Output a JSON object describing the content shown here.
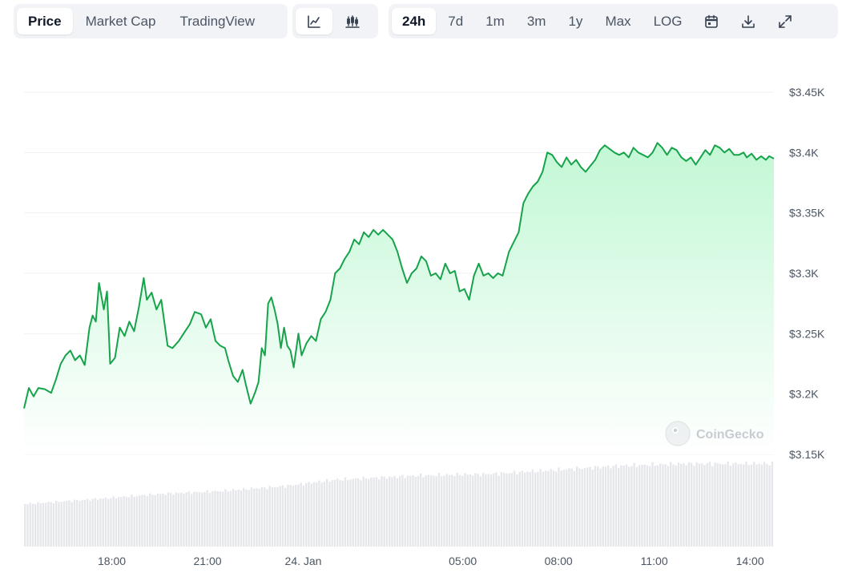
{
  "toolbar": {
    "view_tabs": [
      {
        "label": "Price",
        "active": true
      },
      {
        "label": "Market Cap",
        "active": false
      },
      {
        "label": "TradingView",
        "active": false
      }
    ],
    "chart_style_icons": [
      "line-chart-icon",
      "candlestick-icon"
    ],
    "ranges": [
      {
        "label": "24h",
        "active": true
      },
      {
        "label": "7d",
        "active": false
      },
      {
        "label": "1m",
        "active": false
      },
      {
        "label": "3m",
        "active": false
      },
      {
        "label": "1y",
        "active": false
      },
      {
        "label": "Max",
        "active": false
      },
      {
        "label": "LOG",
        "active": false
      }
    ],
    "tool_icons": [
      "calendar-icon",
      "download-icon",
      "expand-icon"
    ]
  },
  "watermark": "CoinGecko",
  "colors": {
    "line": "#16a34a",
    "area_top": "#bbf7d0",
    "grid": "#eef0f3",
    "volume": "#e5e7eb",
    "axis_text": "#4b5563"
  },
  "chart_data": {
    "type": "area",
    "title": "",
    "xlabel": "",
    "ylabel": "",
    "grid": true,
    "legend": "none",
    "x_range_hours": [
      15.25,
      38.75
    ],
    "x_ticks": [
      {
        "label": "18:00",
        "h": 18
      },
      {
        "label": "21:00",
        "h": 21
      },
      {
        "label": "24. Jan",
        "h": 24
      },
      {
        "label": "05:00",
        "h": 29
      },
      {
        "label": "08:00",
        "h": 32
      },
      {
        "label": "11:00",
        "h": 35
      },
      {
        "label": "14:00",
        "h": 38
      }
    ],
    "y_ticks": [
      {
        "label": "$3.45K",
        "v": 3450
      },
      {
        "label": "$3.4K",
        "v": 3400
      },
      {
        "label": "$3.35K",
        "v": 3350
      },
      {
        "label": "$3.3K",
        "v": 3300
      },
      {
        "label": "$3.25K",
        "v": 3250
      },
      {
        "label": "$3.2K",
        "v": 3200
      },
      {
        "label": "$3.15K",
        "v": 3150
      }
    ],
    "ylim": [
      3150,
      3450
    ],
    "series": [
      {
        "points": [
          [
            15.25,
            3188
          ],
          [
            15.4,
            3205
          ],
          [
            15.55,
            3198
          ],
          [
            15.7,
            3205
          ],
          [
            15.9,
            3204
          ],
          [
            16.1,
            3201
          ],
          [
            16.25,
            3212
          ],
          [
            16.4,
            3225
          ],
          [
            16.55,
            3232
          ],
          [
            16.7,
            3236
          ],
          [
            16.85,
            3228
          ],
          [
            17.0,
            3232
          ],
          [
            17.15,
            3224
          ],
          [
            17.3,
            3255
          ],
          [
            17.4,
            3265
          ],
          [
            17.5,
            3260
          ],
          [
            17.6,
            3292
          ],
          [
            17.75,
            3270
          ],
          [
            17.85,
            3285
          ],
          [
            17.95,
            3225
          ],
          [
            18.1,
            3230
          ],
          [
            18.25,
            3255
          ],
          [
            18.4,
            3248
          ],
          [
            18.55,
            3260
          ],
          [
            18.7,
            3252
          ],
          [
            18.85,
            3272
          ],
          [
            19.0,
            3296
          ],
          [
            19.1,
            3278
          ],
          [
            19.25,
            3284
          ],
          [
            19.4,
            3270
          ],
          [
            19.55,
            3278
          ],
          [
            19.75,
            3240
          ],
          [
            19.9,
            3238
          ],
          [
            20.1,
            3244
          ],
          [
            20.3,
            3252
          ],
          [
            20.45,
            3258
          ],
          [
            20.6,
            3268
          ],
          [
            20.8,
            3266
          ],
          [
            20.95,
            3255
          ],
          [
            21.1,
            3262
          ],
          [
            21.25,
            3244
          ],
          [
            21.4,
            3240
          ],
          [
            21.55,
            3238
          ],
          [
            21.65,
            3228
          ],
          [
            21.8,
            3215
          ],
          [
            21.95,
            3210
          ],
          [
            22.1,
            3220
          ],
          [
            22.2,
            3208
          ],
          [
            22.35,
            3192
          ],
          [
            22.5,
            3202
          ],
          [
            22.6,
            3210
          ],
          [
            22.7,
            3238
          ],
          [
            22.8,
            3232
          ],
          [
            22.9,
            3275
          ],
          [
            23.0,
            3280
          ],
          [
            23.1,
            3270
          ],
          [
            23.2,
            3258
          ],
          [
            23.3,
            3238
          ],
          [
            23.4,
            3255
          ],
          [
            23.5,
            3240
          ],
          [
            23.6,
            3236
          ],
          [
            23.7,
            3222
          ],
          [
            23.85,
            3250
          ],
          [
            23.95,
            3232
          ],
          [
            24.1,
            3242
          ],
          [
            24.25,
            3248
          ],
          [
            24.4,
            3244
          ],
          [
            24.55,
            3262
          ],
          [
            24.7,
            3268
          ],
          [
            24.85,
            3278
          ],
          [
            25.0,
            3300
          ],
          [
            25.15,
            3304
          ],
          [
            25.3,
            3312
          ],
          [
            25.45,
            3318
          ],
          [
            25.6,
            3328
          ],
          [
            25.75,
            3324
          ],
          [
            25.9,
            3334
          ],
          [
            26.05,
            3330
          ],
          [
            26.2,
            3336
          ],
          [
            26.35,
            3332
          ],
          [
            26.5,
            3336
          ],
          [
            26.65,
            3332
          ],
          [
            26.8,
            3328
          ],
          [
            26.95,
            3318
          ],
          [
            27.1,
            3304
          ],
          [
            27.25,
            3292
          ],
          [
            27.4,
            3300
          ],
          [
            27.55,
            3304
          ],
          [
            27.7,
            3314
          ],
          [
            27.85,
            3310
          ],
          [
            28.0,
            3298
          ],
          [
            28.15,
            3300
          ],
          [
            28.3,
            3295
          ],
          [
            28.45,
            3308
          ],
          [
            28.6,
            3300
          ],
          [
            28.75,
            3302
          ],
          [
            28.9,
            3285
          ],
          [
            29.05,
            3287
          ],
          [
            29.2,
            3278
          ],
          [
            29.35,
            3298
          ],
          [
            29.5,
            3308
          ],
          [
            29.65,
            3298
          ],
          [
            29.8,
            3300
          ],
          [
            29.95,
            3296
          ],
          [
            30.1,
            3300
          ],
          [
            30.25,
            3298
          ],
          [
            30.45,
            3318
          ],
          [
            30.6,
            3326
          ],
          [
            30.75,
            3334
          ],
          [
            30.9,
            3358
          ],
          [
            31.05,
            3366
          ],
          [
            31.2,
            3372
          ],
          [
            31.35,
            3376
          ],
          [
            31.5,
            3384
          ],
          [
            31.65,
            3400
          ],
          [
            31.8,
            3398
          ],
          [
            31.95,
            3392
          ],
          [
            32.1,
            3388
          ],
          [
            32.25,
            3396
          ],
          [
            32.4,
            3390
          ],
          [
            32.55,
            3394
          ],
          [
            32.7,
            3388
          ],
          [
            32.85,
            3384
          ],
          [
            33.0,
            3389
          ],
          [
            33.15,
            3394
          ],
          [
            33.3,
            3402
          ],
          [
            33.45,
            3406
          ],
          [
            33.6,
            3403
          ],
          [
            33.75,
            3400
          ],
          [
            33.9,
            3398
          ],
          [
            34.05,
            3400
          ],
          [
            34.2,
            3396
          ],
          [
            34.35,
            3404
          ],
          [
            34.5,
            3400
          ],
          [
            34.65,
            3398
          ],
          [
            34.8,
            3396
          ],
          [
            34.95,
            3400
          ],
          [
            35.1,
            3408
          ],
          [
            35.25,
            3404
          ],
          [
            35.4,
            3398
          ],
          [
            35.55,
            3404
          ],
          [
            35.7,
            3402
          ],
          [
            35.85,
            3396
          ],
          [
            36.0,
            3393
          ],
          [
            36.15,
            3396
          ],
          [
            36.3,
            3390
          ],
          [
            36.45,
            3396
          ],
          [
            36.6,
            3402
          ],
          [
            36.75,
            3398
          ],
          [
            36.9,
            3406
          ],
          [
            37.05,
            3404
          ],
          [
            37.2,
            3400
          ],
          [
            37.35,
            3403
          ],
          [
            37.5,
            3398
          ],
          [
            37.65,
            3398
          ],
          [
            37.8,
            3400
          ],
          [
            37.9,
            3396
          ],
          [
            38.05,
            3399
          ],
          [
            38.2,
            3394
          ],
          [
            38.35,
            3397
          ],
          [
            38.5,
            3394
          ],
          [
            38.6,
            3397
          ],
          [
            38.75,
            3395
          ]
        ]
      }
    ],
    "volume": {
      "scale": "relative",
      "levels": [
        [
          15.25,
          0.42
        ],
        [
          17.5,
          0.47
        ],
        [
          19.5,
          0.52
        ],
        [
          21.5,
          0.55
        ],
        [
          23.5,
          0.6
        ],
        [
          25.0,
          0.66
        ],
        [
          27.5,
          0.7
        ],
        [
          30.0,
          0.72
        ],
        [
          32.0,
          0.76
        ],
        [
          34.0,
          0.8
        ],
        [
          36.0,
          0.82
        ],
        [
          38.75,
          0.82
        ]
      ]
    }
  }
}
